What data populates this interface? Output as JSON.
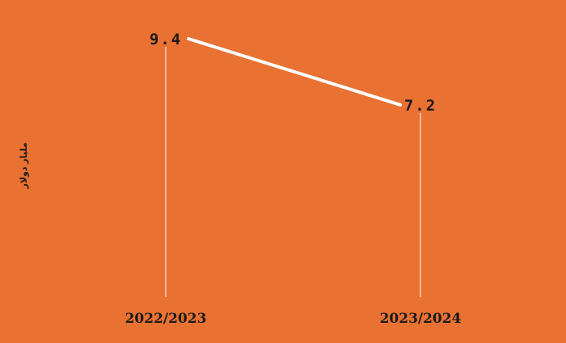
{
  "chart_data": {
    "type": "line",
    "categories": [
      "2022/2023",
      "2023/2024"
    ],
    "values": [
      9.4,
      7.2
    ],
    "data_labels": [
      "9.4",
      "7.2"
    ],
    "ylabel": "مليار دولار",
    "title": "",
    "xlabel": "",
    "grid": false,
    "legend": "none",
    "colors": {
      "background": "#E97132",
      "line": "#FFFFFF",
      "drop_lines": "#FFFFFF",
      "text": "#1A1A1A"
    }
  }
}
